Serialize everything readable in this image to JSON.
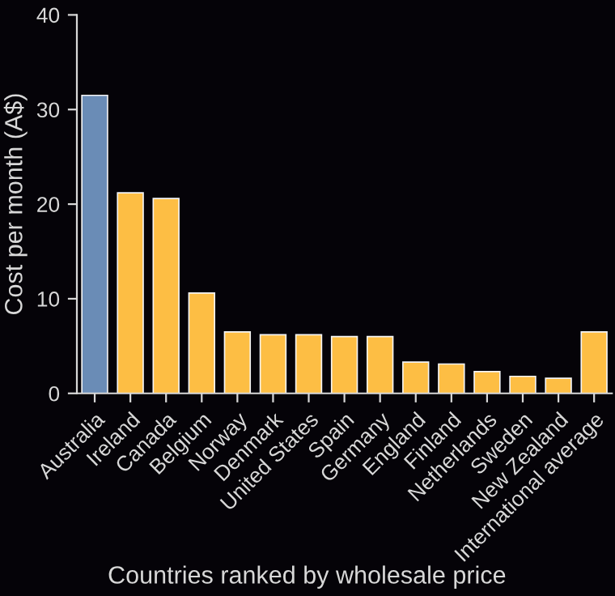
{
  "chart_data": {
    "type": "bar",
    "xlabel": "Countries ranked by wholesale price",
    "ylabel": "Cost per month (A$)",
    "categories": [
      "Australia",
      "Ireland",
      "Canada",
      "Belgium",
      "Norway",
      "Denmark",
      "United States",
      "Spain",
      "Germany",
      "England",
      "Finland",
      "Netherlands",
      "Sweden",
      "New Zealand",
      "International average"
    ],
    "values": [
      31.5,
      21.2,
      20.6,
      10.6,
      6.5,
      6.2,
      6.2,
      6.0,
      6.0,
      3.3,
      3.1,
      2.3,
      1.8,
      1.6,
      6.5
    ],
    "colors": [
      "#6a8cb6",
      "#fdbe44",
      "#fdbe44",
      "#fdbe44",
      "#fdbe44",
      "#fdbe44",
      "#fdbe44",
      "#fdbe44",
      "#fdbe44",
      "#fdbe44",
      "#fdbe44",
      "#fdbe44",
      "#fdbe44",
      "#fdbe44",
      "#fdbe44"
    ],
    "ylim": [
      0,
      40
    ],
    "yticks": [
      0,
      10,
      20,
      30,
      40
    ],
    "grid": false,
    "legend": false
  }
}
